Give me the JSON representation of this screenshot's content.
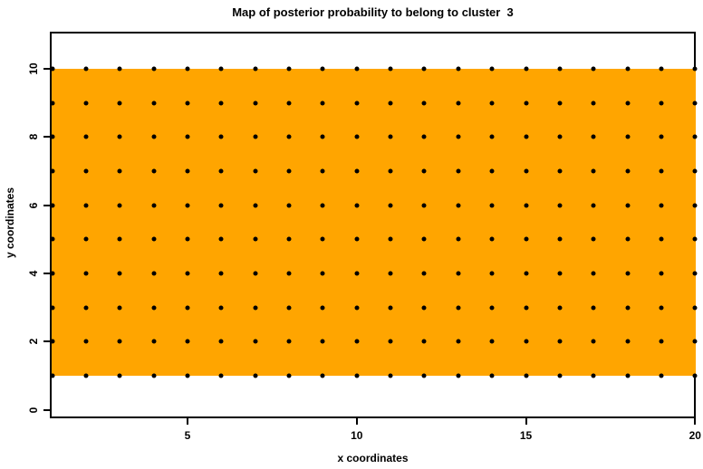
{
  "figure": {
    "background_color": "#FFFFFF",
    "title": "Map of posterior probability to belong to cluster  3"
  },
  "chart_data": {
    "type": "heatmap",
    "title": "Map of posterior probability to belong to cluster  3",
    "xlabel": "x coordinates",
    "ylabel": "y coordinates",
    "xlim": [
      0.93,
      20.02
    ],
    "ylim": [
      -0.25,
      11.09
    ],
    "x_ticks": [
      5,
      10,
      15,
      20
    ],
    "y_ticks": [
      0,
      2,
      4,
      6,
      8,
      10
    ],
    "grid_on": false,
    "legend": "none",
    "axis_color": "#000000",
    "region": {
      "x_start": 1,
      "x_end": 20,
      "y_start": 1,
      "y_end": 10,
      "fill_color": "#FFA500"
    },
    "points": {
      "x_values": [
        1,
        2,
        3,
        4,
        5,
        6,
        7,
        8,
        9,
        10,
        11,
        12,
        13,
        14,
        15,
        16,
        17,
        18,
        19,
        20
      ],
      "y_values": [
        1,
        2,
        3,
        4,
        5,
        6,
        7,
        8,
        9,
        10
      ],
      "marker": "filled-circle",
      "color": "#000000"
    }
  }
}
